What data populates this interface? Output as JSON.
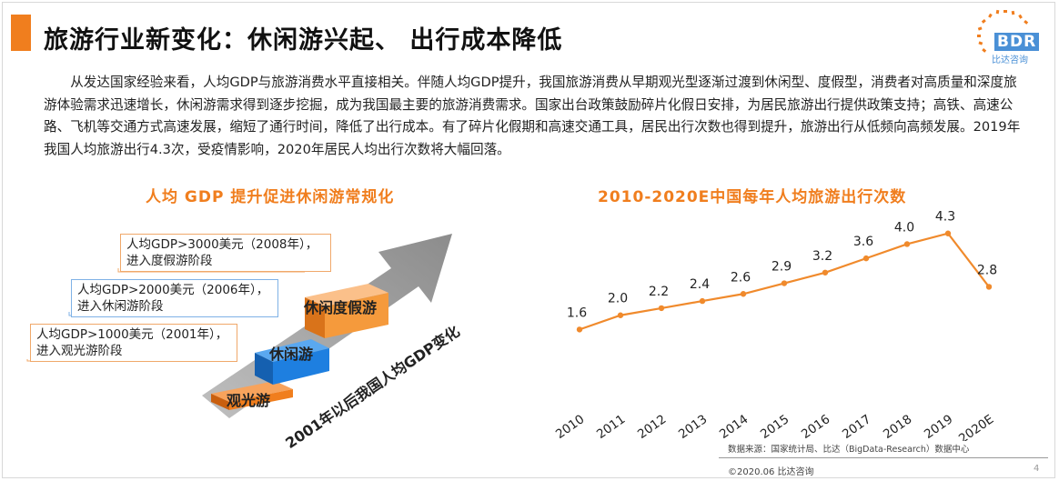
{
  "title": "旅游行业新变化：休闲游兴起、 出行成本降低",
  "logo": {
    "text": "BDR",
    "sub": "比达咨询"
  },
  "paragraph": "从发达国家经验来看，人均GDP与旅游消费水平直接相关。伴随人均GDP提升，我国旅游消费从早期观光型逐渐过渡到休闲型、度假型，消费者对高质量和深度旅游体验需求迅速增长，休闲游需求得到逐步挖掘，成为我国最主要的旅游消费需求。国家出台政策鼓励碎片化假日安排，为居民旅游出行提供政策支持；高铁、高速公路、飞机等交通方式高速发展，缩短了通行时间，降低了出行成本。有了碎片化假期和高速交通工具，居民出行次数也得到提升，旅游出行从低频向高频发展。2019年我国人均旅游出行4.3次，受疫情影响，2020年居民人均出行次数将大幅回落。",
  "left_subtitle": "人均 GDP 提升促进休闲游常规化",
  "right_subtitle": "2010-2020E中国每年人均旅游出行次数",
  "diagram": {
    "arrow_label": "2001年以后我国人均GDP变化",
    "stages": [
      {
        "label": "观光游",
        "callout": "人均GDP>1000美元（2001年），进入观光游阶段",
        "color": "#f07e1e"
      },
      {
        "label": "休闲游",
        "callout": "人均GDP>2000美元（2006年），进入休闲游阶段",
        "color": "#1e7fe0"
      },
      {
        "label": "休闲度假游",
        "callout": "人均GDP>3000美元（2008年），进入度假游阶段",
        "color": "#f59a3c"
      }
    ]
  },
  "chart_data": {
    "type": "line",
    "title": "2010-2020E中国每年人均旅游出行次数",
    "x": [
      "2010",
      "2011",
      "2012",
      "2013",
      "2014",
      "2015",
      "2016",
      "2017",
      "2018",
      "2019",
      "2020E"
    ],
    "values": [
      1.6,
      2.0,
      2.2,
      2.4,
      2.6,
      2.9,
      3.2,
      3.6,
      4.0,
      4.3,
      2.8
    ],
    "data_labels": [
      "1.6",
      "2.0",
      "2.2",
      "2.4",
      "2.6",
      "2.9",
      "3.2",
      "3.6",
      "4.0",
      "4.3",
      "2.8"
    ],
    "color": "#f08a2c",
    "ylim": [
      0,
      4.6
    ],
    "grid": false,
    "xlabel": "",
    "ylabel": ""
  },
  "footer": {
    "source": "数据来源：国家统计局、比达（BigData-Research）数据中心",
    "copyright": "©2020.06  比达咨询",
    "page": "4"
  }
}
